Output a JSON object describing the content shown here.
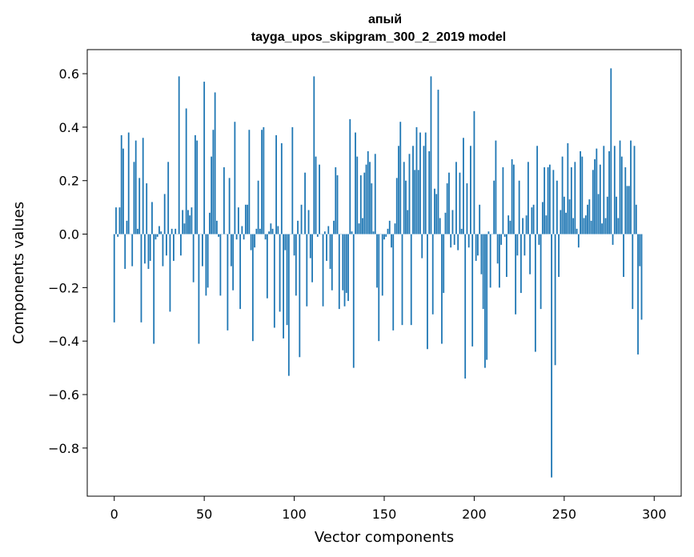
{
  "chart_data": {
    "type": "bar",
    "title_line1": "апый",
    "title_line2": "tayga_upos_skipgram_300_2_2019 model",
    "xlabel": "Vector components",
    "ylabel": "Components values",
    "xlim": [
      -15,
      315
    ],
    "ylim": [
      -0.98,
      0.69
    ],
    "xticks": [
      0,
      50,
      100,
      150,
      200,
      250,
      300
    ],
    "xtick_labels": [
      "0",
      "50",
      "100",
      "150",
      "200",
      "250",
      "300"
    ],
    "yticks": [
      0.6,
      0.4,
      0.2,
      0.0,
      -0.2,
      -0.4,
      -0.6,
      -0.8
    ],
    "ytick_labels": [
      "0.6",
      "0.4",
      "0.2",
      "0.0",
      "−0.2",
      "−0.4",
      "−0.6",
      "−0.8"
    ],
    "bar_color": "#1f77b4",
    "values": [
      -0.33,
      0.1,
      -0.01,
      0.1,
      0.37,
      0.32,
      -0.13,
      0.05,
      0.38,
      0.0,
      -0.12,
      0.27,
      0.35,
      0.02,
      0.21,
      -0.33,
      0.36,
      -0.11,
      0.19,
      -0.13,
      -0.1,
      0.12,
      -0.41,
      -0.02,
      -0.01,
      0.03,
      0.01,
      -0.12,
      0.15,
      -0.08,
      0.27,
      -0.29,
      0.02,
      -0.1,
      0.02,
      0.0,
      0.59,
      -0.08,
      0.09,
      0.04,
      0.47,
      0.09,
      0.07,
      0.1,
      -0.18,
      0.37,
      0.35,
      -0.41,
      0.0,
      -0.12,
      0.57,
      -0.23,
      -0.2,
      0.08,
      0.29,
      0.39,
      0.53,
      0.05,
      -0.01,
      -0.23,
      0.0,
      0.25,
      0.0,
      -0.36,
      0.21,
      -0.12,
      -0.21,
      0.42,
      -0.02,
      0.1,
      -0.28,
      0.03,
      -0.02,
      0.11,
      0.11,
      0.39,
      -0.06,
      -0.4,
      -0.05,
      0.02,
      0.2,
      0.02,
      0.39,
      0.4,
      -0.02,
      -0.24,
      0.01,
      0.04,
      0.02,
      -0.35,
      0.37,
      0.03,
      -0.29,
      0.34,
      -0.39,
      -0.06,
      -0.34,
      -0.53,
      0.0,
      0.4,
      -0.08,
      -0.23,
      0.05,
      -0.46,
      0.11,
      0.0,
      0.23,
      -0.27,
      0.09,
      -0.09,
      -0.18,
      0.59,
      0.29,
      -0.01,
      0.26,
      0.0,
      -0.27,
      0.01,
      -0.1,
      0.03,
      -0.13,
      -0.21,
      0.05,
      0.25,
      0.22,
      -0.28,
      0.0,
      -0.21,
      -0.27,
      -0.22,
      -0.25,
      0.43,
      0.01,
      -0.5,
      0.38,
      0.29,
      0.04,
      0.22,
      0.06,
      0.23,
      0.26,
      0.31,
      0.27,
      0.19,
      0.01,
      0.3,
      -0.2,
      -0.4,
      0.0,
      -0.23,
      -0.02,
      -0.01,
      0.02,
      0.05,
      -0.05,
      -0.36,
      0.04,
      0.21,
      0.33,
      0.42,
      -0.34,
      0.27,
      0.2,
      0.09,
      0.3,
      -0.34,
      0.33,
      0.24,
      0.4,
      0.24,
      0.38,
      -0.09,
      0.33,
      0.38,
      -0.43,
      0.31,
      0.59,
      -0.3,
      0.17,
      0.15,
      0.54,
      0.06,
      -0.41,
      -0.22,
      0.08,
      0.19,
      0.23,
      -0.05,
      0.09,
      -0.04,
      0.27,
      -0.06,
      0.23,
      0.02,
      0.36,
      -0.54,
      0.19,
      -0.05,
      0.33,
      -0.42,
      0.46,
      -0.1,
      -0.08,
      0.11,
      -0.15,
      -0.28,
      -0.5,
      -0.47,
      0.01,
      -0.2,
      0.0,
      0.2,
      0.35,
      -0.11,
      -0.2,
      -0.04,
      0.25,
      -0.01,
      -0.16,
      0.07,
      0.05,
      0.28,
      0.26,
      -0.3,
      -0.08,
      0.2,
      -0.22,
      0.06,
      -0.08,
      0.07,
      0.27,
      -0.15,
      0.1,
      0.11,
      -0.44,
      0.33,
      -0.04,
      -0.28,
      0.12,
      0.25,
      0.07,
      0.25,
      0.26,
      -0.91,
      0.24,
      -0.49,
      0.2,
      -0.16,
      0.09,
      0.29,
      0.14,
      0.08,
      0.34,
      0.13,
      0.25,
      0.06,
      0.27,
      0.02,
      -0.05,
      0.31,
      0.29,
      0.06,
      0.07,
      0.11,
      0.13,
      0.05,
      0.24,
      0.28,
      0.32,
      0.15,
      0.26,
      0.04,
      0.33,
      0.06,
      0.14,
      0.31,
      0.62,
      -0.04,
      0.33,
      0.14,
      0.06,
      0.35,
      0.29,
      -0.16,
      0.25,
      0.18,
      0.18,
      0.35,
      -0.28,
      0.33,
      0.11,
      -0.45,
      -0.12,
      -0.32
    ]
  }
}
